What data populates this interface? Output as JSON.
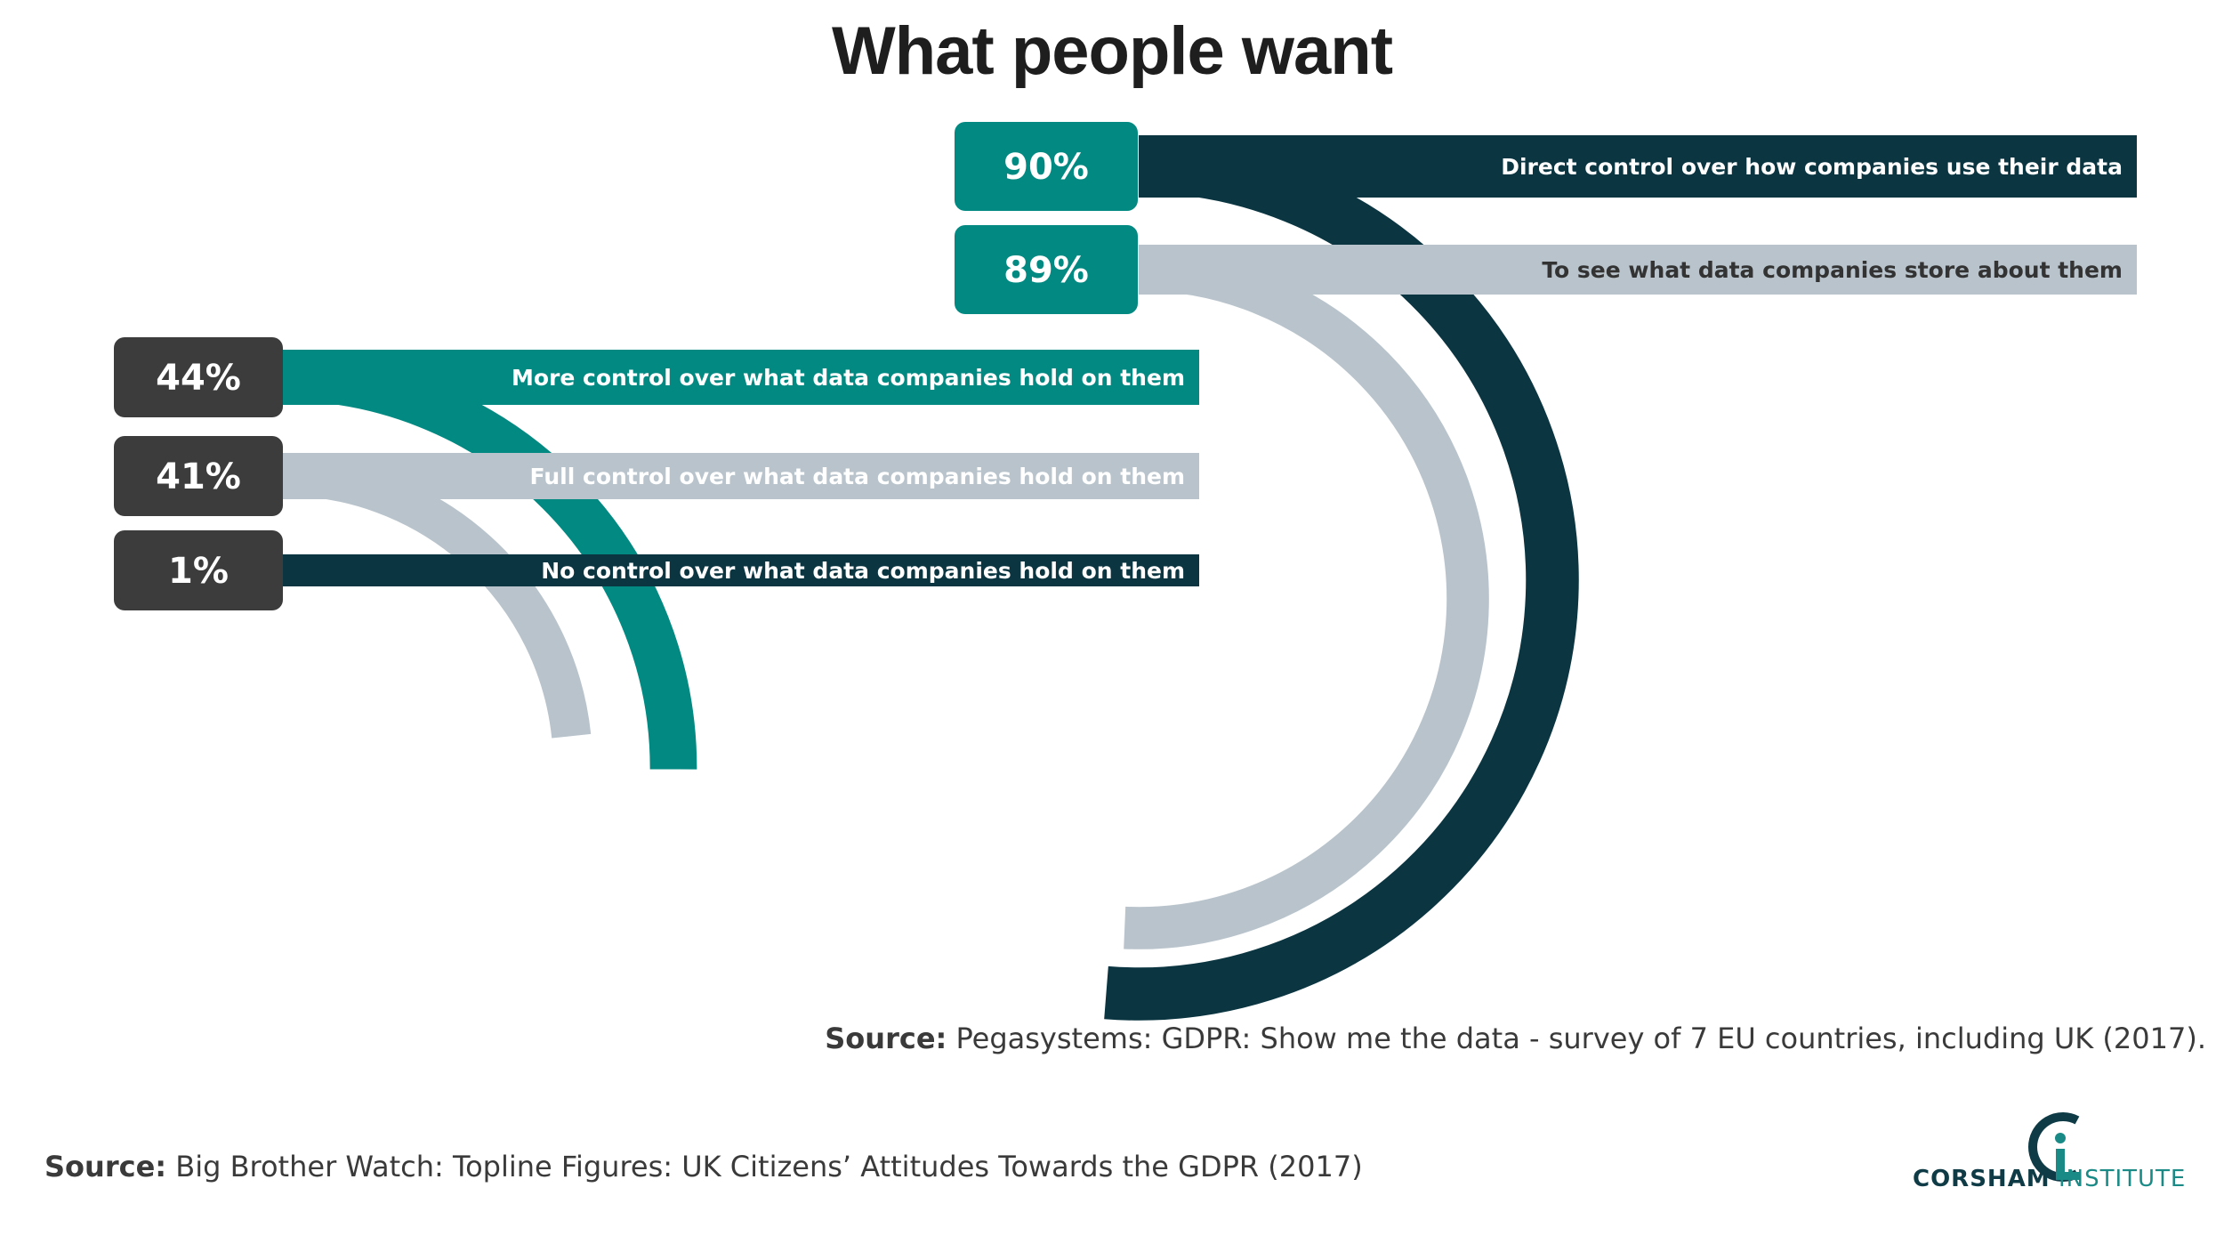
{
  "title": "What people want",
  "colors": {
    "teal": "#028a82",
    "dark_teal": "#0a3541",
    "gray": "#b8c3cb",
    "badge_dark": "#3c3c3c",
    "text_dark": "#333333",
    "white": "#ffffff"
  },
  "chart_data": [
    {
      "type": "bar",
      "series": [
        {
          "label": "Direct control over how companies use their data",
          "value": 90,
          "value_label": "90%",
          "color": "#0a3541",
          "badge_color": "#028a82",
          "label_color": "#ffffff"
        },
        {
          "label": "To see what data companies store about them",
          "value": 89,
          "value_label": "89%",
          "color": "#b8c3cb",
          "badge_color": "#028a82",
          "label_color": "#333333"
        }
      ],
      "source_prefix": "Source:",
      "source_text": " Pegasystems: GDPR: Show me the data - survey of 7 EU countries, including UK (2017)."
    },
    {
      "type": "bar",
      "series": [
        {
          "label": "More control over what data companies hold on them",
          "value": 44,
          "value_label": "44%",
          "color": "#028a82",
          "badge_color": "#3c3c3c",
          "label_color": "#ffffff"
        },
        {
          "label": "Full control over what data companies hold on them",
          "value": 41,
          "value_label": "41%",
          "color": "#b8c3cb",
          "badge_color": "#3c3c3c",
          "label_color": "#ffffff"
        },
        {
          "label": "No control over what data companies hold on them",
          "value": 1,
          "value_label": "1%",
          "color": "#0a3541",
          "badge_color": "#3c3c3c",
          "label_color": "#ffffff"
        }
      ],
      "source_prefix": "Source:",
      "source_text": " Big Brother Watch: Topline Figures: UK Citizens’ Attitudes Towards the GDPR (2017)"
    }
  ],
  "logo": {
    "name_bold": "CORSHAM",
    "name_light": " INSTITUTE",
    "icon": "corsham-ci-logo-icon"
  }
}
